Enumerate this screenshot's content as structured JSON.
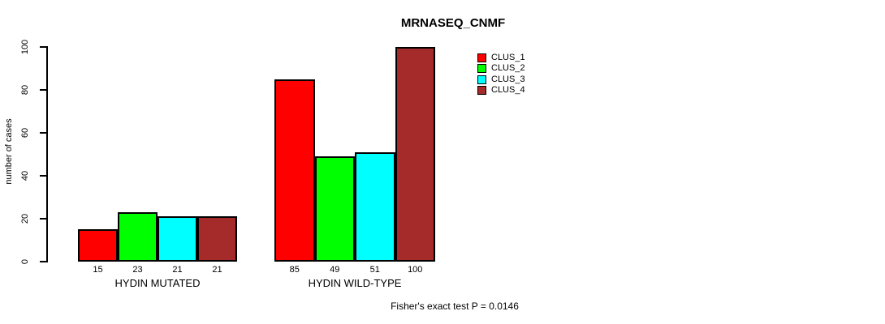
{
  "chart_data": {
    "type": "bar",
    "title": "MRNASEQ_CNMF",
    "xlabel": "",
    "ylabel": "number of cases",
    "ylim": [
      0,
      100
    ],
    "yticks": [
      0,
      20,
      40,
      60,
      80,
      100
    ],
    "categories": [
      "HYDIN MUTATED",
      "HYDIN WILD-TYPE"
    ],
    "series": [
      {
        "name": "CLUS_1",
        "color": "#ff0000",
        "values": [
          15,
          85
        ]
      },
      {
        "name": "CLUS_2",
        "color": "#00ff00",
        "values": [
          23,
          49
        ]
      },
      {
        "name": "CLUS_3",
        "color": "#00ffff",
        "values": [
          21,
          51
        ]
      },
      {
        "name": "CLUS_4",
        "color": "#a52a2a",
        "values": [
          21,
          100
        ]
      }
    ],
    "bar_value_labels": [
      [
        "15",
        "23",
        "21",
        "21"
      ],
      [
        "85",
        "49",
        "51",
        "100"
      ]
    ],
    "legend": [
      "CLUS_1",
      "CLUS_2",
      "CLUS_3",
      "CLUS_4"
    ],
    "legend_position": "top-right",
    "grid": false,
    "annotation": "Fisher's exact test P = 0.0146"
  }
}
